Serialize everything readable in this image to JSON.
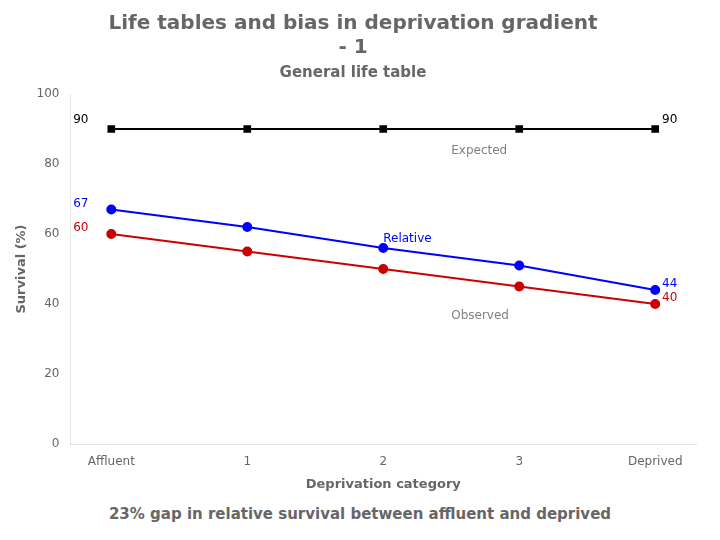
{
  "chart_data": {
    "type": "line",
    "title": "Life tables and bias in deprivation gradient\n- 1",
    "subtitle": "General life table",
    "xlabel": "Deprivation category",
    "ylabel": "Survival (%)",
    "bottom_text": "23% gap in relative survival between affluent and deprived",
    "x": [
      0,
      1,
      2,
      3,
      4
    ],
    "xlim": [
      -0.3,
      4.3
    ],
    "xticks": [
      {
        "value": 0,
        "label": "Affluent"
      },
      1,
      2,
      3,
      {
        "value": 4,
        "label": "Deprived"
      }
    ],
    "ylim": [
      0,
      100
    ],
    "yticks": [
      0,
      20,
      40,
      60,
      80,
      100
    ],
    "grid": false,
    "series": [
      {
        "color": "#000000",
        "marker": "square",
        "values": [
          90,
          90,
          90,
          90,
          90
        ]
      },
      {
        "color": "#0000FF",
        "marker": "circle",
        "values": [
          67,
          62,
          56,
          51,
          44
        ]
      },
      {
        "color": "#CC0000",
        "marker": "circle",
        "values": [
          60,
          55,
          50,
          45,
          40
        ]
      }
    ],
    "annotations": [
      {
        "text": "Expected",
        "x": 2.5,
        "y": 82,
        "color": "#808080"
      },
      {
        "text": "Relative",
        "x": 2.0,
        "y": 57,
        "color": "#0000FF"
      },
      {
        "text": "Observed",
        "x": 2.5,
        "y": 35,
        "color": "#808080"
      },
      {
        "text": "90",
        "x": -0.28,
        "y": 91,
        "color": "#000000"
      },
      {
        "text": "67",
        "x": -0.28,
        "y": 67,
        "color": "#0000FF"
      },
      {
        "text": "60",
        "x": -0.28,
        "y": 60,
        "color": "#CC0000"
      },
      {
        "text": "90",
        "x": 4.05,
        "y": 91,
        "color": "#000000"
      },
      {
        "text": "44",
        "x": 4.05,
        "y": 44,
        "color": "#0000FF"
      },
      {
        "text": "40",
        "x": 4.05,
        "y": 40,
        "color": "#CC0000"
      }
    ]
  }
}
